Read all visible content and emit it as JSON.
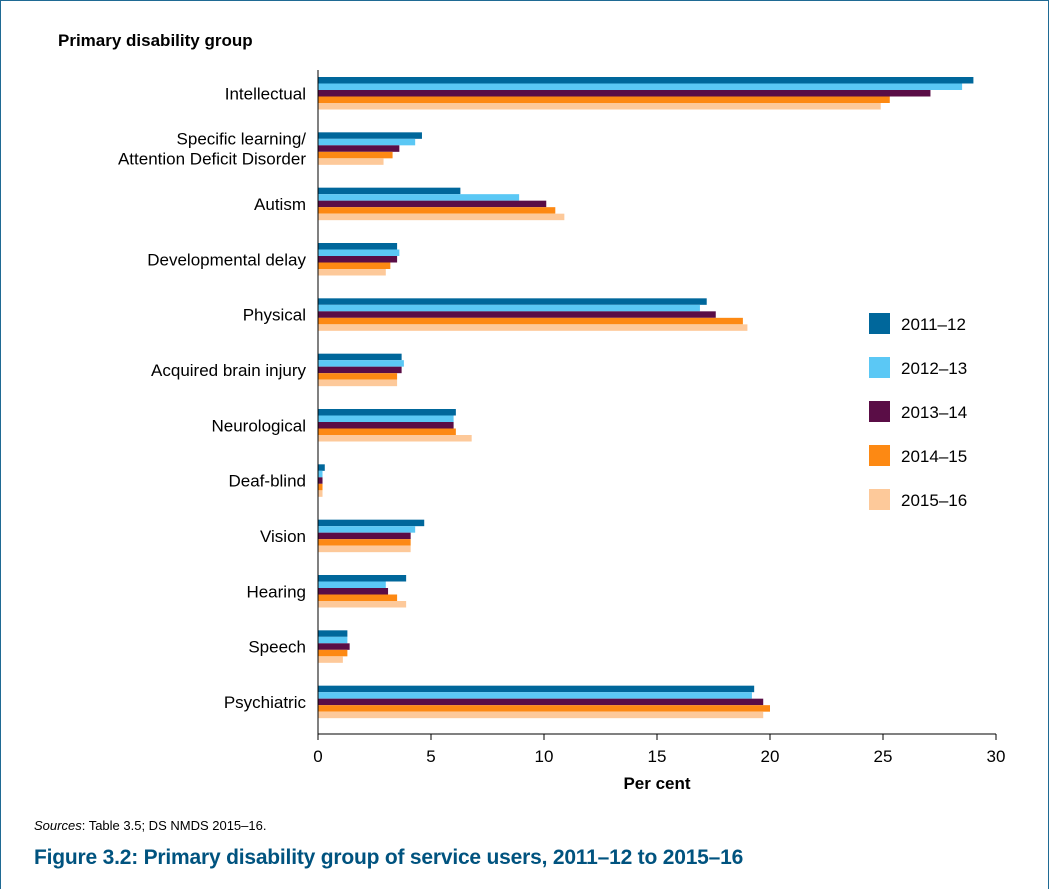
{
  "figure": {
    "group_heading": "Primary disability group",
    "source_prefix": "Sources",
    "source_text": ": Table 3.5; DS NMDS 2015–16.",
    "caption": "Figure 3.2: Primary disability group of service users, 2011–12 to 2015–16"
  },
  "colors": {
    "frame": "#1f6a94",
    "caption": "#00537f"
  },
  "chart_data": {
    "type": "bar",
    "orientation": "horizontal",
    "title": "",
    "ylabel": "Primary disability group",
    "xlabel": "Per cent",
    "xlim": [
      0,
      30
    ],
    "xticks": [
      0,
      5,
      10,
      15,
      20,
      25,
      30
    ],
    "grid": false,
    "legend_position": "right",
    "categories": [
      [
        "Intellectual"
      ],
      [
        "Specific learning/",
        "Attention Deficit Disorder"
      ],
      [
        "Autism"
      ],
      [
        "Developmental delay"
      ],
      [
        "Physical"
      ],
      [
        "Acquired brain injury"
      ],
      [
        "Neurological"
      ],
      [
        "Deaf-blind"
      ],
      [
        "Vision"
      ],
      [
        "Hearing"
      ],
      [
        "Speech"
      ],
      [
        "Psychiatric"
      ]
    ],
    "series": [
      {
        "name": "2011–12",
        "color": "#00679b",
        "values": [
          29.0,
          4.6,
          6.3,
          3.5,
          17.2,
          3.7,
          6.1,
          0.3,
          4.7,
          3.9,
          1.3,
          19.3
        ]
      },
      {
        "name": "2012–13",
        "color": "#5bc8f5",
        "values": [
          28.5,
          4.3,
          8.9,
          3.6,
          16.9,
          3.8,
          6.0,
          0.2,
          4.3,
          3.0,
          1.3,
          19.2
        ]
      },
      {
        "name": "2013–14",
        "color": "#5a0d46",
        "values": [
          27.1,
          3.6,
          10.1,
          3.5,
          17.6,
          3.7,
          6.0,
          0.2,
          4.1,
          3.1,
          1.4,
          19.7
        ]
      },
      {
        "name": "2014–15",
        "color": "#fd8913",
        "values": [
          25.3,
          3.3,
          10.5,
          3.2,
          18.8,
          3.5,
          6.1,
          0.2,
          4.1,
          3.5,
          1.3,
          20.0
        ]
      },
      {
        "name": "2015–16",
        "color": "#fdc99a",
        "values": [
          24.9,
          2.9,
          10.9,
          3.0,
          19.0,
          3.5,
          6.8,
          0.2,
          4.1,
          3.9,
          1.1,
          19.7
        ]
      }
    ]
  }
}
